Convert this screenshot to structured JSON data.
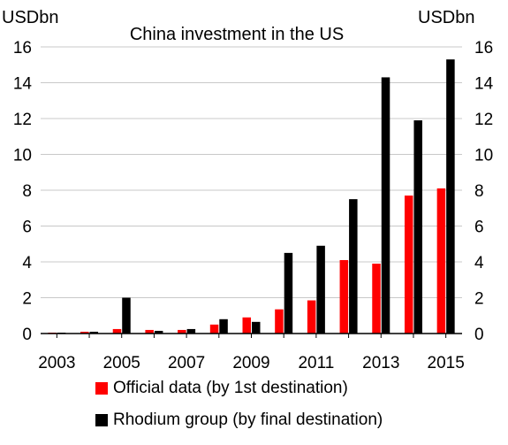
{
  "chart_data": {
    "type": "bar",
    "title": "China investment in the US",
    "ylabel_left": "USDbn",
    "ylabel_right": "USDbn",
    "categories": [
      "2003",
      "2004",
      "2005",
      "2006",
      "2007",
      "2008",
      "2009",
      "2010",
      "2011",
      "2012",
      "2013",
      "2014",
      "2015"
    ],
    "x_tick_labels": [
      "2003",
      "2005",
      "2007",
      "2009",
      "2011",
      "2013",
      "2015"
    ],
    "ylim": [
      0,
      16
    ],
    "yticks": [
      "0",
      "2",
      "4",
      "6",
      "8",
      "10",
      "12",
      "14",
      "16"
    ],
    "grid": true,
    "legend_position": "bottom",
    "series": [
      {
        "name": "Official data (by 1st destination)",
        "color": "#ff0000",
        "values": [
          0.05,
          0.1,
          0.25,
          0.2,
          0.2,
          0.5,
          0.9,
          1.35,
          1.85,
          4.1,
          3.9,
          7.7,
          8.1
        ]
      },
      {
        "name": "Rhodium group (by final destination)",
        "color": "#000000",
        "values": [
          0.05,
          0.1,
          2.0,
          0.15,
          0.25,
          0.8,
          0.65,
          4.5,
          4.9,
          7.5,
          14.3,
          11.9,
          15.3
        ]
      }
    ]
  }
}
